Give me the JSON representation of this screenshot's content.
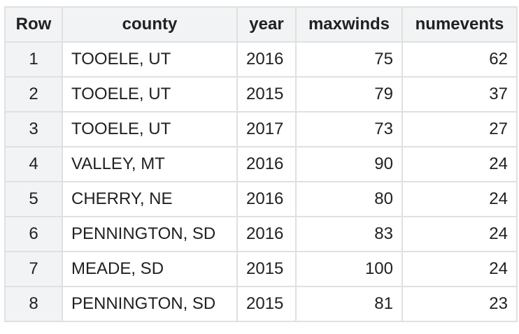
{
  "columns": [
    "Row",
    "county",
    "year",
    "maxwinds",
    "numevents"
  ],
  "rows": [
    {
      "row": "1",
      "county": "TOOELE, UT",
      "year": "2016",
      "maxwinds": "75",
      "numevents": "62"
    },
    {
      "row": "2",
      "county": "TOOELE, UT",
      "year": "2015",
      "maxwinds": "79",
      "numevents": "37"
    },
    {
      "row": "3",
      "county": "TOOELE, UT",
      "year": "2017",
      "maxwinds": "73",
      "numevents": "27"
    },
    {
      "row": "4",
      "county": "VALLEY, MT",
      "year": "2016",
      "maxwinds": "90",
      "numevents": "24"
    },
    {
      "row": "5",
      "county": "CHERRY, NE",
      "year": "2016",
      "maxwinds": "80",
      "numevents": "24"
    },
    {
      "row": "6",
      "county": "PENNINGTON, SD",
      "year": "2016",
      "maxwinds": "83",
      "numevents": "24"
    },
    {
      "row": "7",
      "county": "MEADE, SD",
      "year": "2015",
      "maxwinds": "100",
      "numevents": "24"
    },
    {
      "row": "8",
      "county": "PENNINGTON, SD",
      "year": "2015",
      "maxwinds": "81",
      "numevents": "23"
    }
  ]
}
